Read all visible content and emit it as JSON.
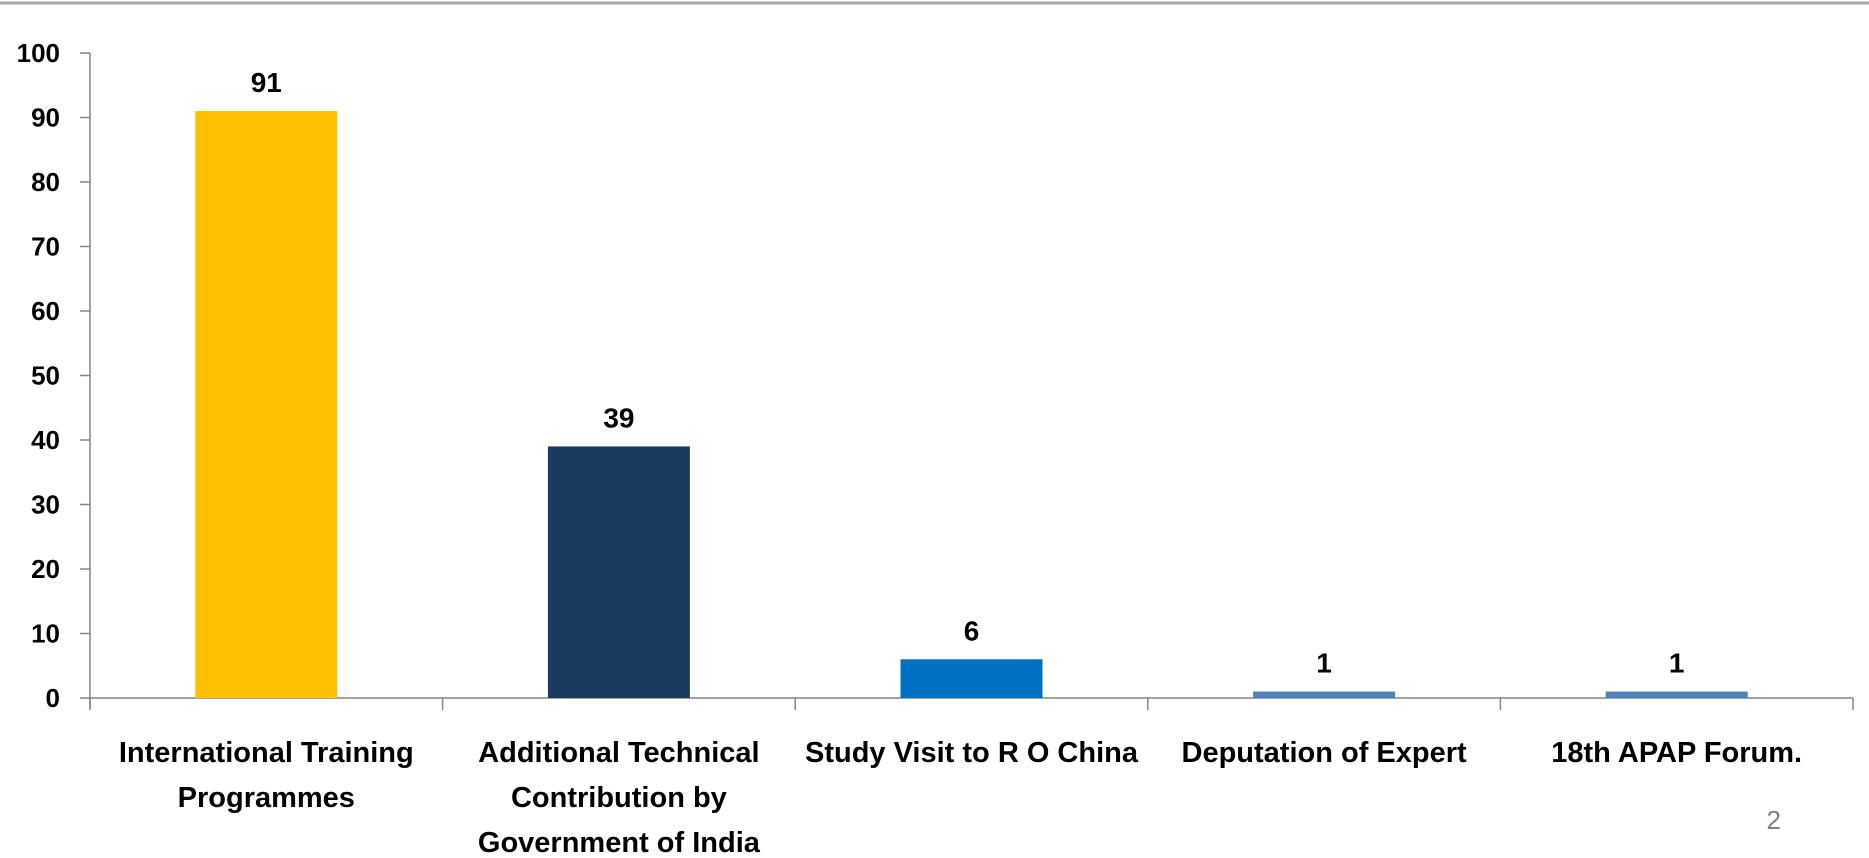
{
  "chart_data": {
    "type": "bar",
    "categories": [
      "International Training Programmes",
      "Additional Technical Contribution by Government of India",
      "Study Visit to R O China",
      "Deputation of Expert",
      "18th APAP Forum."
    ],
    "category_lines": [
      [
        "International Training",
        "Programmes"
      ],
      [
        "Additional Technical",
        "Contribution by",
        "Government of India"
      ],
      [
        "Study Visit to R O China"
      ],
      [
        "Deputation of Expert"
      ],
      [
        "18th APAP Forum."
      ]
    ],
    "values": [
      91,
      39,
      6,
      1,
      1
    ],
    "colors": [
      "#FFC000",
      "#1B3A5F",
      "#0070C0",
      "#4F81BD",
      "#4F81BD"
    ],
    "ylim": [
      0,
      100
    ],
    "yticks": [
      0,
      10,
      20,
      30,
      40,
      50,
      60,
      70,
      80,
      90,
      100
    ],
    "grid": false,
    "data_labels": true
  },
  "page_number": "2"
}
